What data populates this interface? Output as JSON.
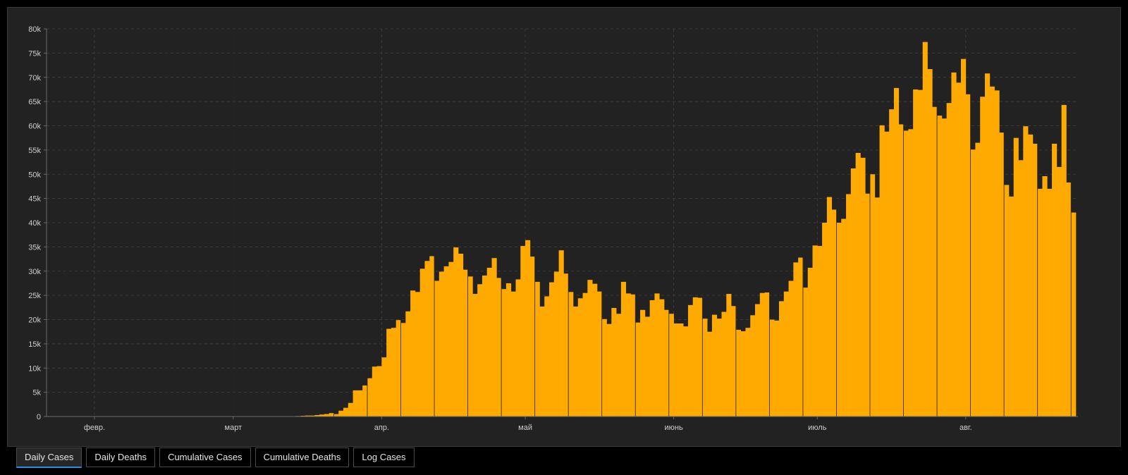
{
  "chart_data": {
    "type": "bar",
    "title": "",
    "xlabel": "",
    "ylabel": "",
    "ylim": [
      0,
      80000
    ],
    "y_ticks": [
      "0",
      "5k",
      "10k",
      "15k",
      "20k",
      "25k",
      "30k",
      "35k",
      "40k",
      "45k",
      "50k",
      "55k",
      "60k",
      "65k",
      "70k",
      "75k",
      "80k"
    ],
    "x_ticks": [
      {
        "label": "февр.",
        "day": 10
      },
      {
        "label": "март",
        "day": 39
      },
      {
        "label": "апр.",
        "day": 70
      },
      {
        "label": "май",
        "day": 100
      },
      {
        "label": "июнь",
        "day": 131
      },
      {
        "label": "июль",
        "day": 161
      },
      {
        "label": "авг.",
        "day": 192
      }
    ],
    "grid": true,
    "bar_color": "#FFAA00",
    "first_day": "2020-01-22",
    "values": [
      1,
      0,
      1,
      0,
      3,
      0,
      0,
      0,
      0,
      1,
      0,
      0,
      0,
      0,
      0,
      0,
      0,
      0,
      0,
      0,
      0,
      0,
      0,
      0,
      0,
      0,
      0,
      0,
      0,
      0,
      0,
      0,
      0,
      0,
      0,
      0,
      0,
      0,
      0,
      0,
      0,
      0,
      0,
      0,
      0,
      0,
      0,
      0,
      0,
      0,
      50,
      50,
      100,
      150,
      200,
      200,
      300,
      400,
      500,
      700,
      500,
      1200,
      1800,
      2800,
      5400,
      5400,
      6400,
      7900,
      10300,
      10400,
      12200,
      18100,
      18300,
      19900,
      19300,
      21700,
      26000,
      25700,
      30500,
      32100,
      33100,
      28000,
      29900,
      31000,
      31900,
      34900,
      33600,
      30300,
      28900,
      25300,
      27300,
      29100,
      30700,
      32700,
      28600,
      26300,
      27500,
      25800,
      28300,
      35200,
      36400,
      33000,
      27800,
      22700,
      24800,
      27700,
      29900,
      34300,
      29500,
      25700,
      22700,
      24400,
      25500,
      28200,
      27400,
      25800,
      20100,
      19100,
      22400,
      21200,
      27800,
      25400,
      25200,
      19400,
      22000,
      20600,
      24000,
      25400,
      24200,
      22000,
      21200,
      19200,
      19200,
      18600,
      23000,
      24600,
      24500,
      20200,
      17500,
      21000,
      20200,
      21600,
      25300,
      22800,
      17900,
      17600,
      18300,
      20900,
      23200,
      25500,
      25600,
      20000,
      19800,
      23800,
      25800,
      28000,
      31800,
      32800,
      26600,
      30700,
      35300,
      35200,
      40000,
      45300,
      42700,
      40000,
      40800,
      45900,
      51200,
      54400,
      53400,
      46000,
      50000,
      45200,
      60100,
      58800,
      63400,
      67800,
      60300,
      59000,
      59300,
      67500,
      67400,
      77300,
      71700,
      63900,
      62100,
      61500,
      64700,
      71000,
      68900,
      73800,
      66500,
      55100,
      56500,
      66000,
      70800,
      68100,
      67300,
      58600,
      47800,
      45400,
      57500,
      52900,
      59900,
      58200,
      56300,
      47000,
      49600,
      47000,
      56300,
      51500,
      64300,
      48300,
      42100
    ]
  },
  "tabs": [
    {
      "label": "Daily Cases",
      "active": true
    },
    {
      "label": "Daily Deaths",
      "active": false
    },
    {
      "label": "Cumulative Cases",
      "active": false
    },
    {
      "label": "Cumulative Deaths",
      "active": false
    },
    {
      "label": "Log Cases",
      "active": false
    }
  ]
}
